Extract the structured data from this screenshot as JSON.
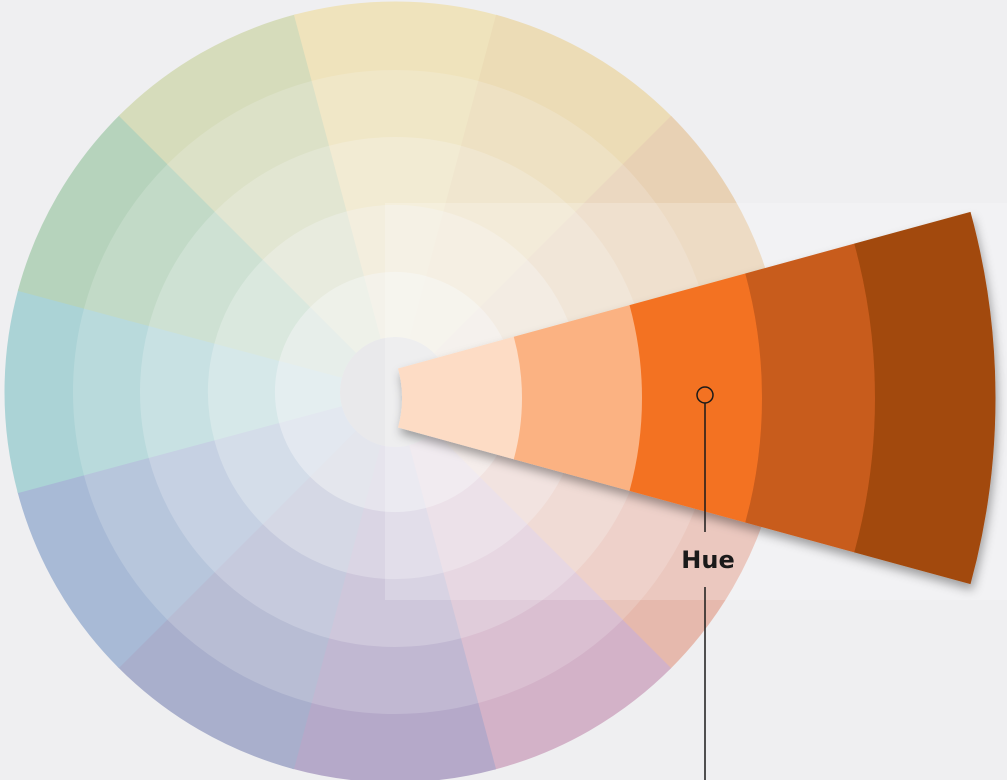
{
  "label": "Hue"
}
